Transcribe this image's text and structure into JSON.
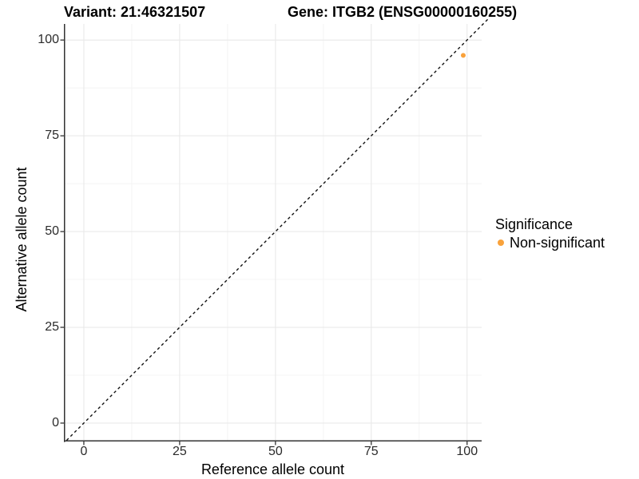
{
  "chart_data": {
    "type": "scatter",
    "title_left": "Variant: 21:46321507",
    "title_right": "Gene: ITGB2 (ENSG00000160255)",
    "xlabel": "Reference allele count",
    "ylabel": "Alternative allele count",
    "x_ticks": [
      0,
      25,
      50,
      75,
      100
    ],
    "y_ticks": [
      0,
      25,
      50,
      75,
      100
    ],
    "x_minor_ticks": [
      12.5,
      37.5,
      62.5,
      87.5
    ],
    "y_minor_ticks": [
      12.5,
      37.5,
      62.5,
      87.5
    ],
    "xlim": [
      -5.2,
      103.8
    ],
    "ylim": [
      -4.8,
      104.2
    ],
    "grid": "major-and-minor",
    "points": [
      {
        "x": 99,
        "y": 96,
        "series": "Non-significant",
        "color": "#F9A23B",
        "radius": 3
      }
    ],
    "reference_line": {
      "type": "identity",
      "slope": 1,
      "intercept": 0,
      "style": "dashed",
      "color": "#111111"
    },
    "legend": {
      "position": "right",
      "title": "Significance",
      "items": [
        {
          "label": "Non-significant",
          "color": "#F9A23B"
        }
      ]
    },
    "colors": {
      "background": "#ffffff",
      "grid_major": "#E9E9E9",
      "grid_minor": "#F4F4F4",
      "axis_line": "#333333",
      "tick_text": "#2b2b2b",
      "point": "#F9A23B"
    }
  }
}
